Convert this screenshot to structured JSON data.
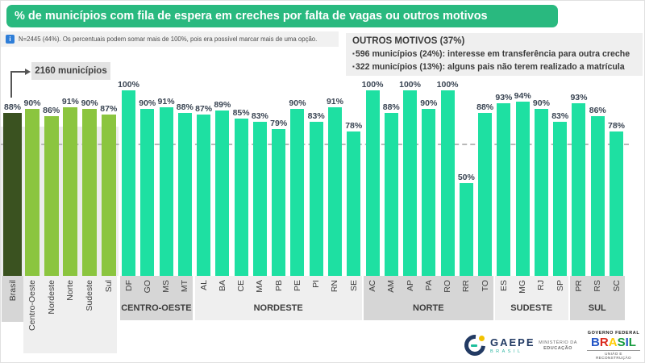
{
  "header": {
    "title": "% de municípios com fila de espera em creches por falta de vagas ou outros motivos",
    "title_bg": "#29b97f"
  },
  "note": {
    "icon": "i",
    "text": "N=2445 (44%). Os percentuais podem somar mais de 100%, pois era possível marcar mais de uma opção."
  },
  "outros": {
    "title": "OUTROS MOTIVOS (37%)",
    "bullet": "▪",
    "items": [
      "596 municípios (24%): interesse em transferência para outra creche",
      "322 municípios (13%): alguns pais não terem realizado a matrícula"
    ]
  },
  "annotation": {
    "label": "2160 municípios"
  },
  "chart_data": {
    "type": "bar",
    "ylim": [
      0,
      100
    ],
    "unit": "%",
    "reference_line_value": 71,
    "colors": {
      "brasil": "#3a5220",
      "region": "#8bc53f",
      "state": "#1ee0a2"
    },
    "groups": [
      {
        "kind": "brasil",
        "label": "",
        "shade": "dark",
        "bars": [
          {
            "label": "Brasil",
            "value": 88
          }
        ]
      },
      {
        "kind": "regions",
        "label": "",
        "shade": "light",
        "bars": [
          {
            "label": "Centro-Oeste",
            "value": 90
          },
          {
            "label": "Nordeste",
            "value": 86
          },
          {
            "label": "Norte",
            "value": 91
          },
          {
            "label": "Sudeste",
            "value": 90
          },
          {
            "label": "Sul",
            "value": 87
          }
        ]
      },
      {
        "kind": "states",
        "label": "CENTRO-OESTE",
        "shade": "dark",
        "bars": [
          {
            "label": "DF",
            "value": 100
          },
          {
            "label": "GO",
            "value": 90
          },
          {
            "label": "MS",
            "value": 91
          },
          {
            "label": "MT",
            "value": 88
          }
        ]
      },
      {
        "kind": "states",
        "label": "NORDESTE",
        "shade": "light",
        "bars": [
          {
            "label": "AL",
            "value": 87
          },
          {
            "label": "BA",
            "value": 89
          },
          {
            "label": "CE",
            "value": 85
          },
          {
            "label": "MA",
            "value": 83
          },
          {
            "label": "PB",
            "value": 79
          },
          {
            "label": "PE",
            "value": 90
          },
          {
            "label": "PI",
            "value": 83
          },
          {
            "label": "RN",
            "value": 91
          },
          {
            "label": "SE",
            "value": 78
          }
        ]
      },
      {
        "kind": "states",
        "label": "NORTE",
        "shade": "dark",
        "bars": [
          {
            "label": "AC",
            "value": 100
          },
          {
            "label": "AM",
            "value": 88
          },
          {
            "label": "AP",
            "value": 100
          },
          {
            "label": "PA",
            "value": 90
          },
          {
            "label": "RO",
            "value": 100
          },
          {
            "label": "RR",
            "value": 50
          },
          {
            "label": "TO",
            "value": 88
          }
        ]
      },
      {
        "kind": "states",
        "label": "SUDESTE",
        "shade": "light",
        "bars": [
          {
            "label": "ES",
            "value": 93
          },
          {
            "label": "MG",
            "value": 94
          },
          {
            "label": "RJ",
            "value": 90
          },
          {
            "label": "SP",
            "value": 83
          }
        ]
      },
      {
        "kind": "states",
        "label": "SUL",
        "shade": "dark",
        "bars": [
          {
            "label": "PR",
            "value": 93
          },
          {
            "label": "RS",
            "value": 86
          },
          {
            "label": "SC",
            "value": 78
          }
        ]
      }
    ]
  },
  "footer": {
    "gaepe": {
      "name": "GAEPE",
      "sub": "BRASIL"
    },
    "mec": {
      "line1": "MINISTÉRIO DA",
      "line2": "EDUCAÇÃO"
    },
    "gov": {
      "top": "GOVERNO FEDERAL",
      "name": "BRASIL",
      "letter_colors": [
        "#2456c6",
        "#da291c",
        "#ffcd07",
        "#169b3e",
        "#2456c6",
        "#169b3e"
      ],
      "bottom": "UNIÃO E RECONSTRUÇÃO"
    }
  }
}
